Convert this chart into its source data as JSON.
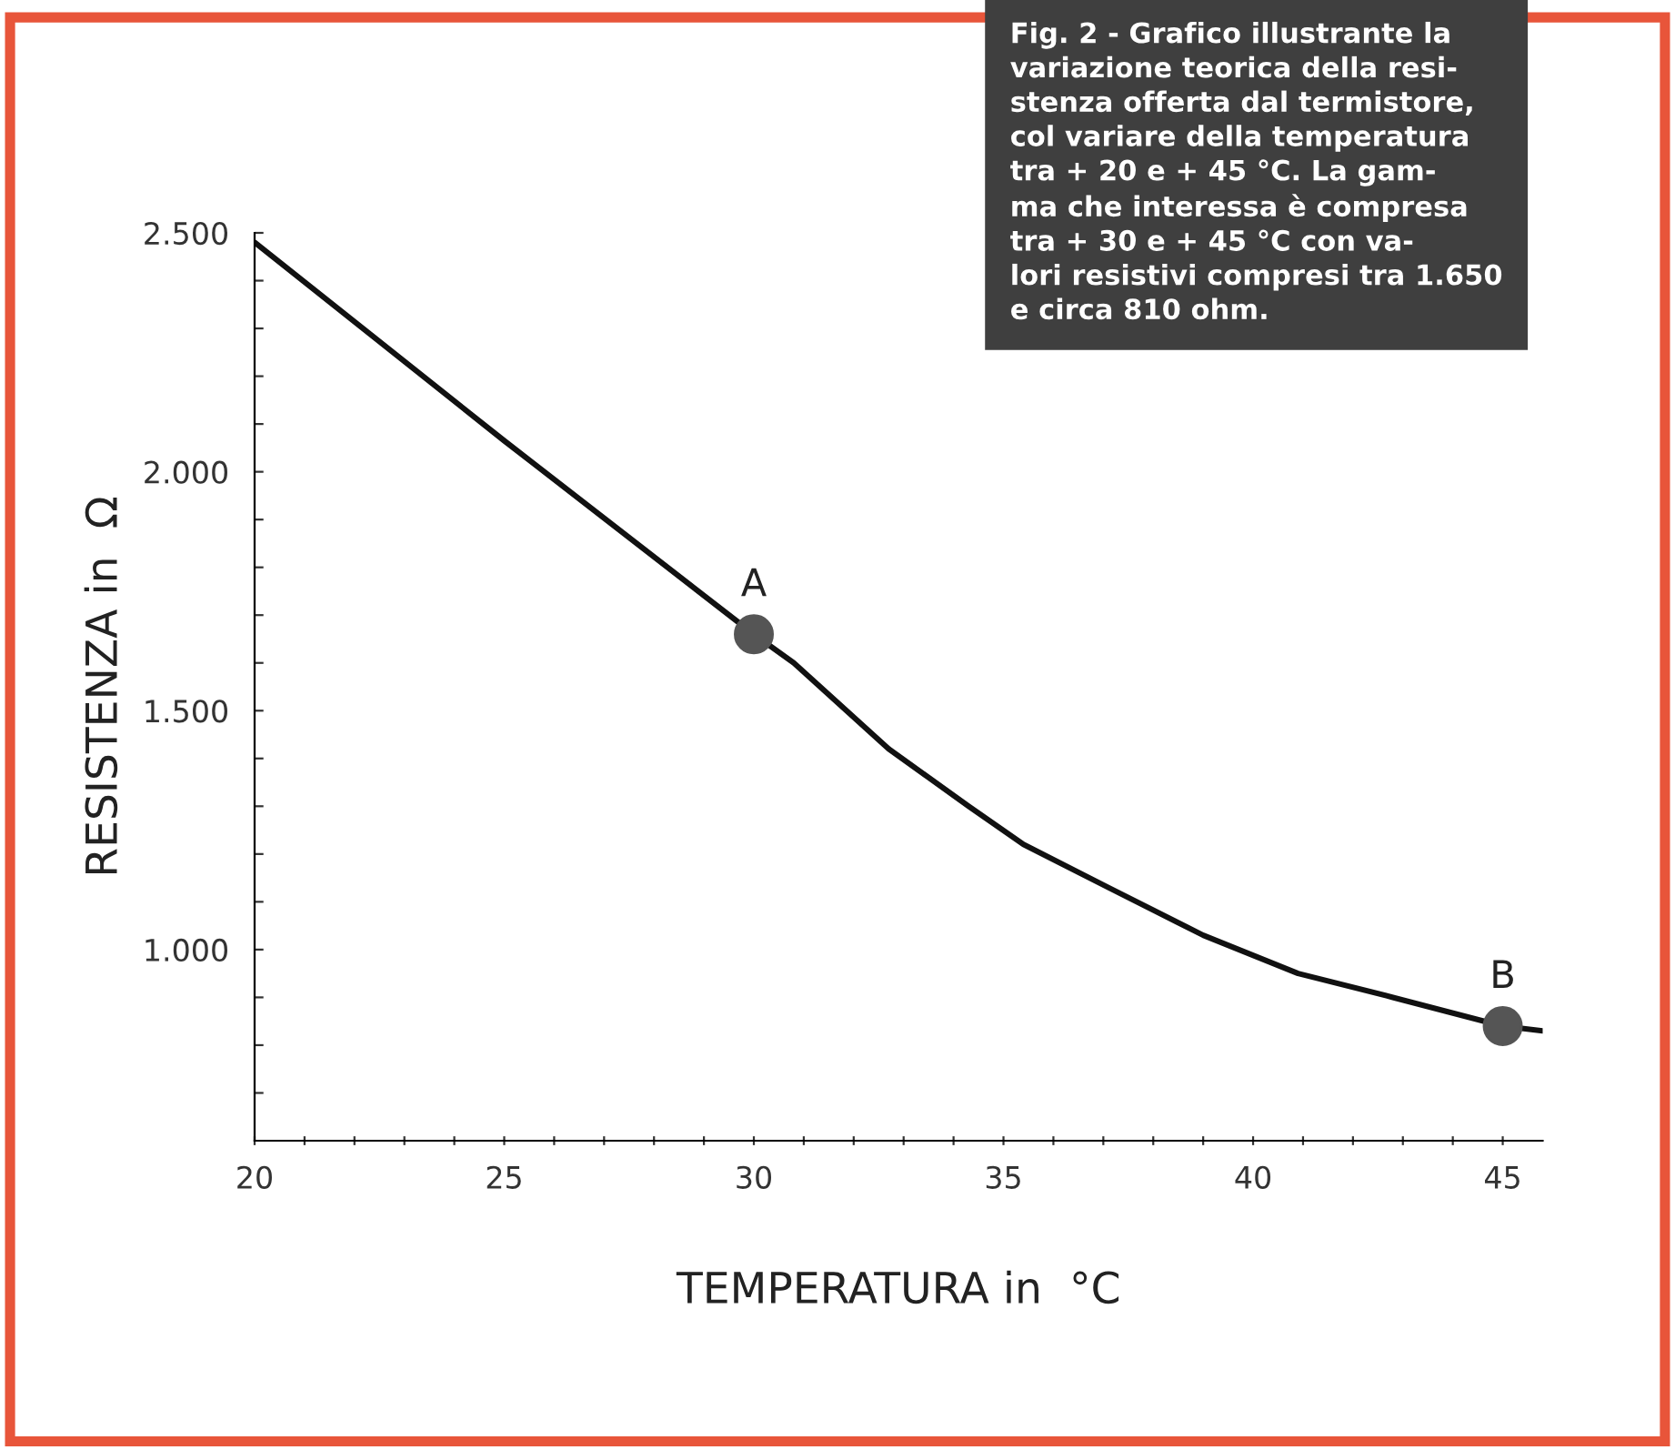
{
  "chart_data": {
    "type": "line",
    "title": "Fig. 2 - Grafico illustrante la\nvariazione teorica della resi-\nstenza offerta dal termistore,\ncol variare della temperatura\ntra + 20 e + 45 °C. La gam-\nma che interessa è compresa\ntra + 30 e + 45 °C con va-\nlori resistivi compresi tra 1.650\ne circa 810 ohm.",
    "xlabel": "TEMPERATURA in  °C",
    "ylabel": "RESISTENZA in  Ω",
    "series": [
      {
        "type": "line",
        "color": "#111111",
        "x": [
          20,
          25,
          30,
          30.8,
          32.7,
          34.3,
          35.4,
          37.1,
          39.0,
          40.9,
          42.8,
          45.0,
          45.8
        ],
        "values": [
          2480,
          2065,
          1660,
          1600,
          1420,
          1300,
          1220,
          1130,
          1030,
          950,
          900,
          840,
          830
        ]
      },
      {
        "type": "scatter",
        "color": "#555555",
        "marker": "circle",
        "x": [
          30,
          45
        ],
        "values": [
          1660,
          840
        ]
      }
    ],
    "annotations": [
      {
        "text": "A",
        "x": 30,
        "y": 1660
      },
      {
        "text": "B",
        "x": 45,
        "y": 840
      }
    ],
    "xlim": [
      20,
      45.8
    ],
    "ylim": [
      600,
      2500
    ],
    "xticks": [
      20,
      {
        "value": 21,
        "label": null
      },
      {
        "value": 22,
        "label": null
      },
      {
        "value": 23,
        "label": null
      },
      {
        "value": 24,
        "label": null
      },
      25,
      {
        "value": 26,
        "label": null
      },
      {
        "value": 27,
        "label": null
      },
      {
        "value": 28,
        "label": null
      },
      {
        "value": 29,
        "label": null
      },
      30,
      {
        "value": 31,
        "label": null
      },
      {
        "value": 32,
        "label": null
      },
      {
        "value": 33,
        "label": null
      },
      {
        "value": 34,
        "label": null
      },
      35,
      {
        "value": 36,
        "label": null
      },
      {
        "value": 37,
        "label": null
      },
      {
        "value": 38,
        "label": null
      },
      {
        "value": 39,
        "label": null
      },
      40,
      {
        "value": 41,
        "label": null
      },
      {
        "value": 42,
        "label": null
      },
      {
        "value": 43,
        "label": null
      },
      {
        "value": 44,
        "label": null
      },
      45
    ],
    "yticks": [
      {
        "value": 700,
        "label": null
      },
      {
        "value": 800,
        "label": null
      },
      {
        "value": 900,
        "label": null
      },
      {
        "value": 1000,
        "label": "1.000"
      },
      {
        "value": 1100,
        "label": null
      },
      {
        "value": 1200,
        "label": null
      },
      {
        "value": 1300,
        "label": null
      },
      {
        "value": 1400,
        "label": null
      },
      {
        "value": 1500,
        "label": "1.500"
      },
      {
        "value": 1600,
        "label": null
      },
      {
        "value": 1700,
        "label": null
      },
      {
        "value": 1800,
        "label": null
      },
      {
        "value": 1900,
        "label": null
      },
      {
        "value": 2000,
        "label": "2.000"
      },
      {
        "value": 2100,
        "label": null
      },
      {
        "value": 2200,
        "label": null
      },
      {
        "value": 2300,
        "label": null
      },
      {
        "value": 2400,
        "label": null
      },
      {
        "value": 2500,
        "label": "2.500"
      }
    ],
    "grid": false,
    "legend": false
  }
}
